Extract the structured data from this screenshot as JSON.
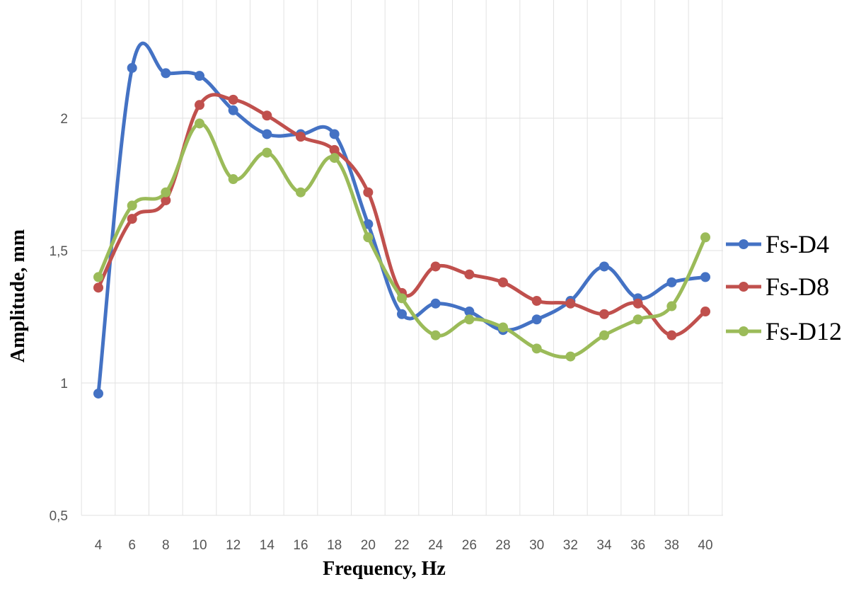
{
  "chart_data": {
    "type": "line",
    "title": "",
    "xlabel": "Frequency, Hz",
    "ylabel": "Amplitude, mm",
    "x": [
      4,
      6,
      8,
      10,
      12,
      14,
      16,
      18,
      20,
      22,
      24,
      26,
      28,
      30,
      32,
      34,
      36,
      38,
      40
    ],
    "x_tick_labels": [
      "4",
      "6",
      "8",
      "10",
      "12",
      "14",
      "16",
      "18",
      "20",
      "22",
      "24",
      "26",
      "28",
      "30",
      "32",
      "34",
      "36",
      "38",
      "40"
    ],
    "y_ticks": [
      0.5,
      1,
      1.5,
      2
    ],
    "y_tick_labels": [
      "0,5",
      "1",
      "1,5",
      "2"
    ],
    "ylim": [
      0.5,
      2.5
    ],
    "grid": "vertical and horizontal light gray",
    "legend_position": "right",
    "series": [
      {
        "name": "Fs-D4",
        "color": "#4472C4",
        "values": [
          0.96,
          2.19,
          2.17,
          2.16,
          2.03,
          1.94,
          1.94,
          1.94,
          1.6,
          1.26,
          1.3,
          1.27,
          1.2,
          1.24,
          1.31,
          1.44,
          1.32,
          1.38,
          1.4
        ]
      },
      {
        "name": "Fs-D8",
        "color": "#C0504D",
        "values": [
          1.36,
          1.62,
          1.69,
          2.05,
          2.07,
          2.01,
          1.93,
          1.88,
          1.72,
          1.34,
          1.44,
          1.41,
          1.38,
          1.31,
          1.3,
          1.26,
          1.3,
          1.18,
          1.27
        ]
      },
      {
        "name": "Fs-D12",
        "color": "#9BBB59",
        "values": [
          1.4,
          1.67,
          1.72,
          1.98,
          1.77,
          1.87,
          1.72,
          1.85,
          1.55,
          1.32,
          1.18,
          1.24,
          1.21,
          1.13,
          1.1,
          1.18,
          1.24,
          1.29,
          1.55
        ]
      }
    ]
  }
}
